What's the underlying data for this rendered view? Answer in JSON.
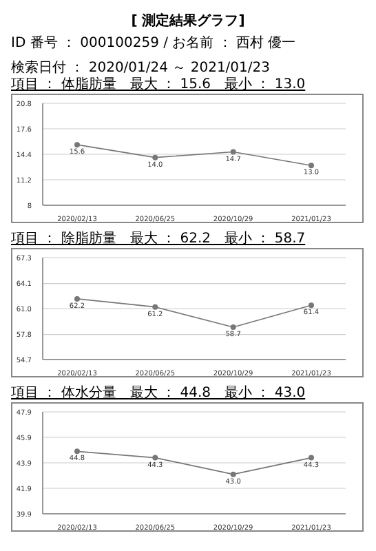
{
  "chart_data": [
    {
      "type": "line",
      "title": "[ 測定結果グラフ]",
      "subtitle": "ID 番号 ： 000100259 / お名前 ： 西村 優一",
      "annotations": [
        "検索日付 ： 2020/01/24 ～ 2021/01/23",
        "項目 ： 体脂肪量　最大 ： 15.6　最小 ： 13.0"
      ],
      "categories": [
        "2020/02/13",
        "2020/06/25",
        "2020/10/29",
        "2021/01/23"
      ],
      "values": [
        15.6,
        14.0,
        14.7,
        13.0
      ],
      "value_labels": [
        "15.6",
        "14.0",
        "14.7",
        "13.0"
      ],
      "color": "#777777",
      "ylim": [
        8.0,
        20.8
      ],
      "yticks": [
        8.0,
        11.2,
        14.4,
        17.6,
        20.8
      ],
      "grid": "y",
      "marker": "circle"
    },
    {
      "type": "line",
      "annotations": [
        "項目 ： 除脂肪量　最大 ： 62.2　最小 ： 58.7"
      ],
      "categories": [
        "2020/02/13",
        "2020/06/25",
        "2020/10/29",
        "2021/01/23"
      ],
      "values": [
        62.2,
        61.2,
        58.7,
        61.4
      ],
      "value_labels": [
        "62.2",
        "61.2",
        "58.7",
        "61.4"
      ],
      "color": "#777777",
      "ylim": [
        54.7,
        67.3
      ],
      "yticks": [
        {
          "value": 54.7,
          "label": "54.7"
        },
        {
          "value": 57.8,
          "label": "57.8"
        },
        {
          "value": 61.0,
          "label": "61.0"
        },
        {
          "value": 64.1,
          "label": "64.1"
        },
        {
          "value": 67.3,
          "label": "67.3"
        }
      ],
      "grid": "y",
      "marker": "circle"
    },
    {
      "type": "line",
      "annotations": [
        "項目 ： 体水分量　最大 ： 44.8　最小 ： 43.0"
      ],
      "categories": [
        "2020/02/13",
        "2020/06/25",
        "2020/10/29",
        "2021/01/23"
      ],
      "values": [
        44.8,
        44.3,
        43.0,
        44.3
      ],
      "value_labels": [
        "44.8",
        "44.3",
        "43.0",
        "44.3"
      ],
      "color": "#777777",
      "ylim": [
        39.9,
        47.9
      ],
      "yticks": [
        39.9,
        41.9,
        43.9,
        45.9,
        47.9
      ],
      "grid": "y",
      "marker": "circle"
    }
  ]
}
